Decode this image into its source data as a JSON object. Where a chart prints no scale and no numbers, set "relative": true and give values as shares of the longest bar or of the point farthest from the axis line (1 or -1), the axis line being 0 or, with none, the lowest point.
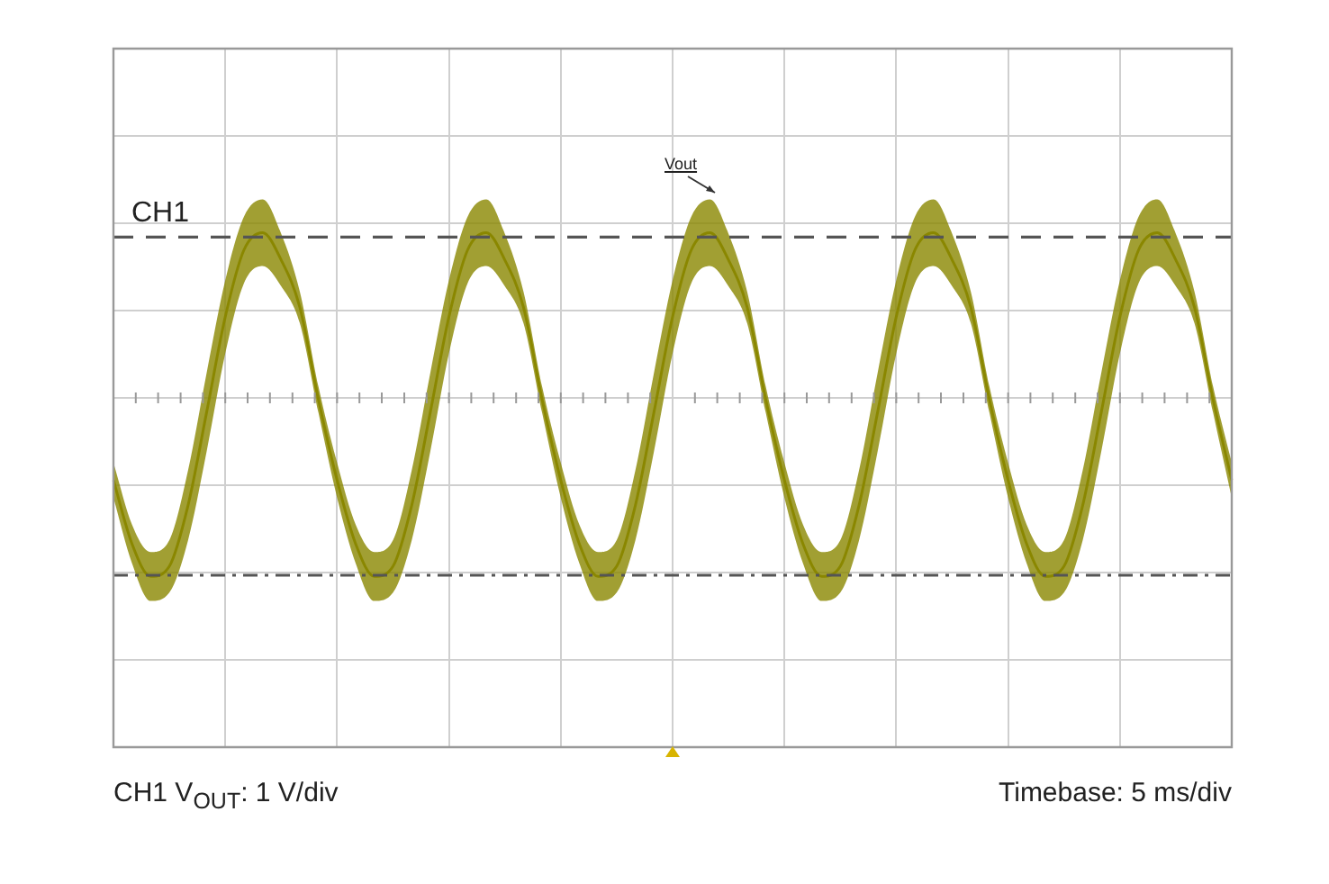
{
  "chart_data": {
    "type": "line",
    "relative": true,
    "grid": true,
    "legend": false,
    "marker": "none",
    "categories": [
      null,
      null,
      null,
      null,
      null,
      null,
      null,
      null,
      null,
      null,
      null,
      null,
      null,
      null,
      null,
      null,
      null,
      null,
      null,
      null,
      null,
      null,
      null,
      null,
      null,
      null,
      null,
      null,
      null,
      null,
      null,
      null,
      null,
      null,
      null,
      null,
      null,
      null,
      null,
      null,
      null,
      null,
      null,
      null,
      null,
      null,
      null,
      null,
      null,
      null,
      null,
      null,
      null,
      null,
      null,
      null,
      null,
      null,
      null,
      null,
      null
    ],
    "series": [
      {
        "color": "#8a8700",
        "values": [
          -0.461,
          -0.819,
          -1,
          -0.943,
          -0.603,
          -0.08,
          0.454,
          0.828,
          0.925,
          0.772,
          0.507,
          -0.01,
          -0.461,
          -0.819,
          -1,
          -0.943,
          -0.603,
          -0.08,
          0.454,
          0.828,
          0.925,
          0.772,
          0.507,
          -0.01,
          -0.461,
          -0.819,
          -1,
          -0.943,
          -0.603,
          -0.08,
          0.454,
          0.828,
          0.925,
          0.772,
          0.507,
          -0.01,
          -0.461,
          -0.819,
          -1,
          -0.943,
          -0.603,
          -0.08,
          0.454,
          0.828,
          0.925,
          0.772,
          0.507,
          -0.01,
          -0.461,
          -0.819,
          -1,
          -0.943,
          -0.603,
          -0.08,
          0.454,
          0.828,
          0.925,
          0.772,
          0.507,
          -0.01,
          -0.461
        ],
        "lower": [
          -0.559,
          -0.927,
          -1.137,
          -1.09,
          -0.799,
          -0.3,
          0.249,
          0.642,
          0.739,
          0.625,
          0.419,
          -0.083,
          -0.559,
          -0.927,
          -1.137,
          -1.09,
          -0.799,
          -0.3,
          0.249,
          0.642,
          0.739,
          0.625,
          0.419,
          -0.083,
          -0.559,
          -0.927,
          -1.137,
          -1.09,
          -0.799,
          -0.3,
          0.249,
          0.642,
          0.739,
          0.625,
          0.419,
          -0.083,
          -0.559,
          -0.927,
          -1.137,
          -1.09,
          -0.799,
          -0.3,
          0.249,
          0.642,
          0.739,
          0.625,
          0.419,
          -0.083,
          -0.559,
          -0.927,
          -1.137,
          -1.09,
          -0.799,
          -0.3,
          0.249,
          0.642,
          0.739,
          0.625,
          0.419,
          -0.083,
          -0.559
        ],
        "upper": [
          -0.363,
          -0.711,
          -0.863,
          -0.796,
          -0.407,
          0.14,
          0.659,
          1.014,
          1.111,
          0.919,
          0.595,
          0.063,
          -0.363,
          -0.711,
          -0.863,
          -0.796,
          -0.407,
          0.14,
          0.659,
          1.014,
          1.111,
          0.919,
          0.595,
          0.063,
          -0.363,
          -0.711,
          -0.863,
          -0.796,
          -0.407,
          0.14,
          0.659,
          1.014,
          1.111,
          0.919,
          0.595,
          0.063,
          -0.363,
          -0.711,
          -0.863,
          -0.796,
          -0.407,
          0.14,
          0.659,
          1.014,
          1.111,
          0.919,
          0.595,
          0.063,
          -0.363,
          -0.711,
          -0.863,
          -0.796,
          -0.407,
          0.14,
          0.659,
          1.014,
          1.111,
          0.919,
          0.595,
          0.063,
          -0.363
        ]
      }
    ],
    "ref_lines": [
      {
        "axis": "y",
        "value": 0.9,
        "label": "CH1",
        "color": "#555555",
        "line_style": "dashed"
      },
      {
        "axis": "y",
        "value": -0.993,
        "color": "#555555",
        "line_style": "dashdot"
      }
    ],
    "annotations": [
      "Vout",
      "CH1 V$_{OUT}$: 1 V/div",
      "Timebase: 5 ms/div"
    ]
  }
}
